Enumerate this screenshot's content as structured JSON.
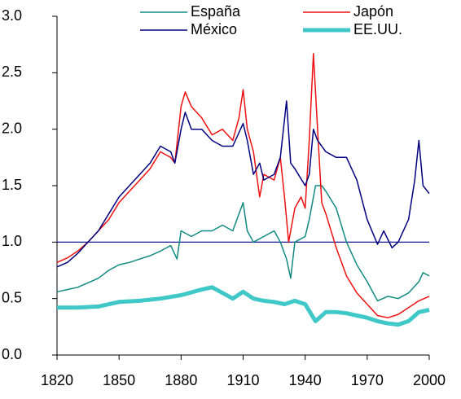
{
  "chart_data": {
    "type": "line",
    "xlim": [
      1820,
      2000
    ],
    "xticks": [
      1820,
      1850,
      1880,
      1910,
      1940,
      1970,
      2000
    ],
    "ylim": [
      0,
      3
    ],
    "yticks": [
      {
        "value": 0,
        "label": "0.0"
      },
      {
        "value": 0.5,
        "label": "0.5"
      },
      {
        "value": 1,
        "label": "1.0"
      },
      {
        "value": 1.5,
        "label": "1.5"
      },
      {
        "value": 2,
        "label": "2.0"
      },
      {
        "value": 2.5,
        "label": "2.5"
      },
      {
        "value": 3,
        "label": "3.0"
      }
    ],
    "hline": 1,
    "hline_color": "#000080",
    "series": [
      {
        "name": "España",
        "color": "#108a80",
        "width": 1.5,
        "x": [
          1820,
          1825,
          1830,
          1835,
          1840,
          1845,
          1850,
          1855,
          1860,
          1865,
          1870,
          1875,
          1878,
          1880,
          1885,
          1890,
          1895,
          1900,
          1905,
          1910,
          1912,
          1915,
          1920,
          1925,
          1928,
          1931,
          1933,
          1935,
          1940,
          1942,
          1945,
          1948,
          1950,
          1955,
          1960,
          1965,
          1970,
          1975,
          1980,
          1985,
          1990,
          1995,
          1997,
          2000
        ],
        "values": [
          0.56,
          0.58,
          0.6,
          0.64,
          0.68,
          0.75,
          0.8,
          0.82,
          0.85,
          0.88,
          0.92,
          0.97,
          0.85,
          1.1,
          1.05,
          1.1,
          1.1,
          1.15,
          1.1,
          1.35,
          1.1,
          1.0,
          1.05,
          1.1,
          1.0,
          0.85,
          0.68,
          1.0,
          1.05,
          1.2,
          1.5,
          1.5,
          1.45,
          1.3,
          1.0,
          0.8,
          0.65,
          0.48,
          0.52,
          0.5,
          0.55,
          0.65,
          0.73,
          0.7
        ]
      },
      {
        "name": "Japón",
        "color": "#ee1111",
        "width": 1.5,
        "x": [
          1820,
          1825,
          1830,
          1835,
          1840,
          1845,
          1850,
          1855,
          1860,
          1865,
          1870,
          1875,
          1877,
          1880,
          1882,
          1885,
          1890,
          1895,
          1900,
          1905,
          1908,
          1910,
          1912,
          1915,
          1918,
          1920,
          1925,
          1928,
          1930,
          1932,
          1935,
          1938,
          1940,
          1942,
          1944,
          1946,
          1948,
          1950,
          1955,
          1960,
          1965,
          1970,
          1975,
          1980,
          1985,
          1990,
          1995,
          2000
        ],
        "values": [
          0.82,
          0.86,
          0.92,
          1.0,
          1.1,
          1.2,
          1.35,
          1.45,
          1.55,
          1.65,
          1.8,
          1.75,
          1.7,
          2.2,
          2.33,
          2.2,
          2.1,
          1.95,
          2.0,
          1.9,
          2.1,
          2.35,
          2.0,
          1.8,
          1.4,
          1.6,
          1.55,
          1.75,
          1.4,
          1.0,
          1.3,
          1.4,
          1.3,
          1.9,
          2.67,
          2.0,
          1.35,
          1.25,
          0.95,
          0.7,
          0.55,
          0.45,
          0.35,
          0.33,
          0.36,
          0.42,
          0.48,
          0.52
        ]
      },
      {
        "name": "México",
        "color": "#000080",
        "width": 1.5,
        "x": [
          1820,
          1825,
          1830,
          1835,
          1840,
          1845,
          1850,
          1855,
          1860,
          1865,
          1870,
          1875,
          1877,
          1880,
          1882,
          1885,
          1890,
          1895,
          1900,
          1905,
          1910,
          1912,
          1915,
          1918,
          1920,
          1925,
          1928,
          1931,
          1933,
          1935,
          1940,
          1942,
          1944,
          1946,
          1950,
          1955,
          1960,
          1965,
          1970,
          1975,
          1978,
          1982,
          1985,
          1990,
          1993,
          1995,
          1997,
          2000
        ],
        "values": [
          0.78,
          0.82,
          0.9,
          1.0,
          1.1,
          1.25,
          1.4,
          1.5,
          1.6,
          1.7,
          1.85,
          1.8,
          1.7,
          2.0,
          2.15,
          2.0,
          2.0,
          1.9,
          1.85,
          1.85,
          2.05,
          1.9,
          1.6,
          1.7,
          1.55,
          1.6,
          1.75,
          2.25,
          1.7,
          1.65,
          1.5,
          1.6,
          2.0,
          1.9,
          1.8,
          1.75,
          1.75,
          1.55,
          1.2,
          0.98,
          1.1,
          0.95,
          1.0,
          1.2,
          1.55,
          1.9,
          1.5,
          1.43
        ]
      },
      {
        "name": "EE.UU.",
        "color": "#40c8c8",
        "width": 5,
        "x": [
          1820,
          1830,
          1840,
          1850,
          1860,
          1870,
          1880,
          1890,
          1895,
          1900,
          1905,
          1910,
          1915,
          1920,
          1925,
          1930,
          1935,
          1940,
          1945,
          1950,
          1955,
          1960,
          1965,
          1970,
          1975,
          1980,
          1985,
          1990,
          1995,
          2000
        ],
        "values": [
          0.42,
          0.42,
          0.43,
          0.47,
          0.48,
          0.5,
          0.53,
          0.58,
          0.6,
          0.55,
          0.5,
          0.56,
          0.5,
          0.48,
          0.47,
          0.45,
          0.48,
          0.45,
          0.3,
          0.38,
          0.38,
          0.37,
          0.35,
          0.33,
          0.3,
          0.28,
          0.27,
          0.3,
          0.38,
          0.4
        ]
      }
    ]
  }
}
